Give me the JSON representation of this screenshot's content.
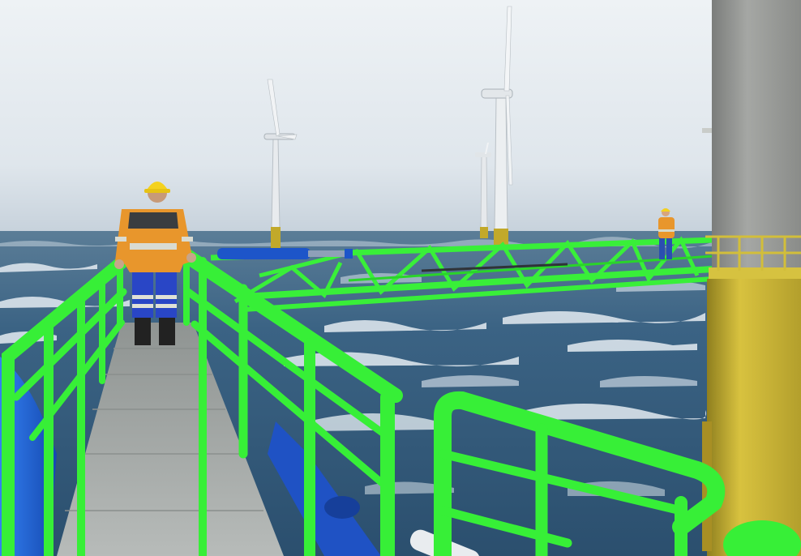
{
  "scene": {
    "colors": {
      "sky_top": "#e9eef2",
      "sky_bottom": "#c7d2dc",
      "sea_deep": "#2c4b66",
      "sea_mid": "#3e6a8c",
      "foam": "#e8eef3",
      "railing_green": "#3af23a",
      "walkway_grey": "#a3a8a6",
      "tower_yellow": "#c8b436",
      "tower_grey": "#9a9c99",
      "hull_blue": "#1f63d8",
      "worker_orange": "#e8962c",
      "worker_blue": "#2342c8",
      "hardhat_yellow": "#f4d21e"
    }
  }
}
